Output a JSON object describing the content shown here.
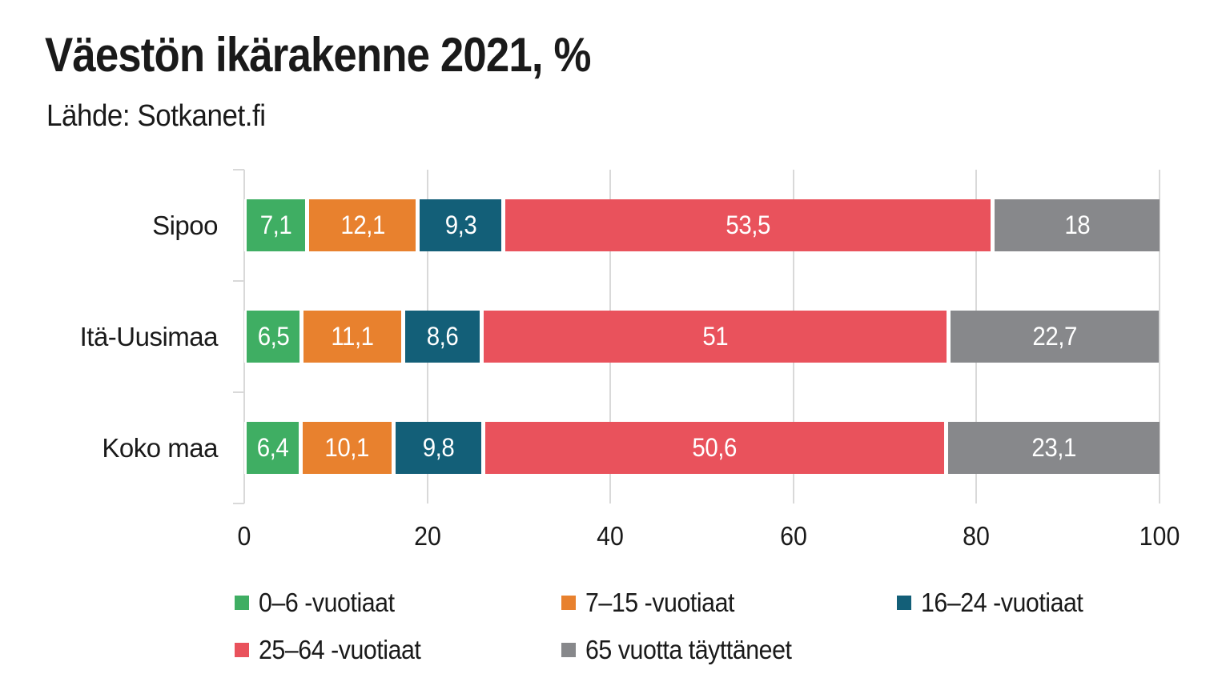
{
  "chart": {
    "title": "Väestön ikärakenne 2021, %",
    "source": "Lähde: Sotkanet.fi"
  },
  "chart_data": {
    "type": "bar",
    "orientation": "horizontal",
    "stacked": true,
    "title": "Väestön ikärakenne 2021, %",
    "subtitle": "Lähde: Sotkanet.fi",
    "categories": [
      "Sipoo",
      "Itä-Uusimaa",
      "Koko maa"
    ],
    "series": [
      {
        "name": "0–6 -vuotiaat",
        "color": "#3fae63",
        "values": [
          7.1,
          6.5,
          6.4
        ],
        "display_values": [
          "7,1",
          "6,5",
          "6,4"
        ]
      },
      {
        "name": "7–15 -vuotiaat",
        "color": "#e8812e",
        "values": [
          12.1,
          11.1,
          10.1
        ],
        "display_values": [
          "12,1",
          "11,1",
          "10,1"
        ]
      },
      {
        "name": "16–24 -vuotiaat",
        "color": "#135f78",
        "values": [
          9.3,
          8.6,
          9.8
        ],
        "display_values": [
          "9,3",
          "8,6",
          "9,8"
        ]
      },
      {
        "name": "25–64 -vuotiaat",
        "color": "#e9525c",
        "values": [
          53.5,
          51,
          50.6
        ],
        "display_values": [
          "53,5",
          "51",
          "50,6"
        ]
      },
      {
        "name": "65 vuotta täyttäneet",
        "color": "#87888b",
        "values": [
          18,
          22.7,
          23.1
        ],
        "display_values": [
          "18",
          "22,7",
          "23,1"
        ]
      }
    ],
    "x_ticks": [
      0,
      20,
      40,
      60,
      80,
      100
    ],
    "xlim": [
      0,
      100
    ],
    "grid": true,
    "grid_color": "#d9d9d9",
    "value_label_color": "#ffffff",
    "legend_position": "bottom"
  }
}
